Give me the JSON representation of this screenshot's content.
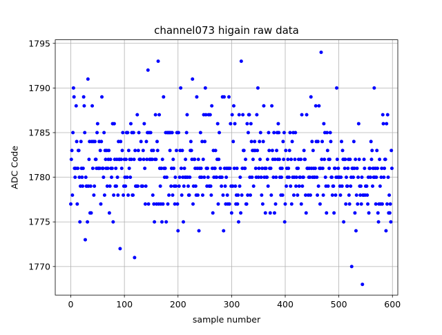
{
  "chart_data": {
    "type": "scatter",
    "title": "channel073 higain raw data",
    "xlabel": "sample number",
    "ylabel": "ADC Code",
    "xlim": [
      -29,
      610
    ],
    "ylim": [
      1766.8,
      1795.4
    ],
    "xticks": [
      0,
      100,
      200,
      300,
      400,
      500,
      600
    ],
    "yticks": [
      1770,
      1775,
      1780,
      1785,
      1790,
      1795
    ],
    "grid": true,
    "marker_color": "#0000ff",
    "series": [
      {
        "x_start": 0,
        "x_step": 1,
        "values": [
          1777,
          1782,
          1783,
          1778,
          1785,
          1790,
          1789,
          1781,
          1780,
          1781,
          1788,
          1784,
          1777,
          1781,
          1783,
          1783,
          1780,
          1775,
          1779,
          1784,
          1781,
          1780,
          1779,
          1781,
          1789,
          1788,
          1785,
          1773,
          1780,
          1779,
          1779,
          1775,
          1791,
          1779,
          1782,
          1784,
          1776,
          1779,
          1776,
          1784,
          1788,
          1781,
          1784,
          1778,
          1779,
          1784,
          1782,
          1782,
          1781,
          1785,
          1786,
          1781,
          1781,
          1784,
          1781,
          1783,
          1777,
          1784,
          1789,
          1781,
          1781,
          1780,
          1785,
          1778,
          1783,
          1782,
          1781,
          1783,
          1779,
          1781,
          1782,
          1783,
          1776,
          1779,
          1782,
          1781,
          1780,
          1781,
          1786,
          1775,
          1778,
          1786,
          1782,
          1779,
          1781,
          1779,
          1782,
          1780,
          1778,
          1784,
          1782,
          1782,
          1772,
          1784,
          1782,
          1781,
          1783,
          1785,
          1778,
          1779,
          1782,
          1780,
          1779,
          1782,
          1785,
          1780,
          1785,
          1778,
          1783,
          1781,
          1782,
          1780,
          1786,
          1782,
          1785,
          1778,
          1778,
          1785,
          1782,
          1771,
          1783,
          1779,
          1779,
          1779,
          1787,
          1779,
          1783,
          1785,
          1782,
          1782,
          1782,
          1784,
          1779,
          1779,
          1779,
          1783,
          1782,
          1786,
          1781,
          1777,
          1779,
          1784,
          1782,
          1785,
          1792,
          1777,
          1785,
          1782,
          1782,
          1785,
          1782,
          1783,
          1782,
          1778,
          1783,
          1777,
          1775,
          1782,
          1787,
          1782,
          1777,
          1784,
          1783,
          1793,
          1777,
          1787,
          1781,
          1779,
          1777,
          1781,
          1775,
          1782,
          1777,
          1789,
          1781,
          1780,
          1781,
          1785,
          1775,
          1780,
          1785,
          1777,
          1785,
          1778,
          1785,
          1783,
          1785,
          1779,
          1781,
          1785,
          1778,
          1782,
          1781,
          1779,
          1777,
          1780,
          1779,
          1783,
          1785,
          1777,
          1774,
          1785,
          1779,
          1780,
          1783,
          1790,
          1781,
          1778,
          1783,
          1780,
          1775,
          1779,
          1781,
          1780,
          1782,
          1780,
          1785,
          1787,
          1780,
          1779,
          1778,
          1778,
          1780,
          1783,
          1784,
          1783,
          1782,
          1791,
          1777,
          1779,
          1782,
          1782,
          1781,
          1779,
          1778,
          1789,
          1781,
          1778,
          1782,
          1774,
          1781,
          1780,
          1785,
          1781,
          1780,
          1784,
          1778,
          1782,
          1787,
          1780,
          1784,
          1790,
          1787,
          1781,
          1779,
          1781,
          1780,
          1787,
          1779,
          1779,
          1787,
          1779,
          1778,
          1788,
          1781,
          1776,
          1783,
          1780,
          1781,
          1781,
          1783,
          1780,
          1780,
          1782,
          1786,
          1777,
          1782,
          1785,
          1780,
          1781,
          1780,
          1779,
          1780,
          1789,
          1778,
          1774,
          1789,
          1781,
          1779,
          1777,
          1780,
          1781,
          1778,
          1777,
          1781,
          1789,
          1777,
          1781,
          1786,
          1779,
          1776,
          1787,
          1779,
          1784,
          1788,
          1781,
          1786,
          1779,
          1777,
          1778,
          1781,
          1777,
          1778,
          1775,
          1787,
          1779,
          1780,
          1776,
          1793,
          1778,
          1781,
          1787,
          1783,
          1783,
          1781,
          1781,
          1782,
          1777,
          1777,
          1786,
          1778,
          1785,
          1787,
          1787,
          1780,
          1778,
          1786,
          1784,
          1780,
          1783,
          1782,
          1779,
          1783,
          1784,
          1783,
          1781,
          1780,
          1787,
          1783,
          1790,
          1780,
          1781,
          1784,
          1782,
          1785,
          1780,
          1778,
          1781,
          1777,
          1784,
          1788,
          1780,
          1781,
          1776,
          1781,
          1780,
          1780,
          1782,
          1779,
          1785,
          1783,
          1781,
          1776,
          1781,
          1778,
          1788,
          1783,
          1782,
          1780,
          1785,
          1776,
          1782,
          1777,
          1780,
          1783,
          1785,
          1782,
          1786,
          1785,
          1782,
          1780,
          1781,
          1778,
          1780,
          1781,
          1778,
          1784,
          1782,
          1785,
          1775,
          1777,
          1783,
          1779,
          1781,
          1780,
          1782,
          1781,
          1780,
          1783,
          1785,
          1779,
          1782,
          1777,
          1784,
          1780,
          1785,
          1778,
          1780,
          1782,
          1785,
          1779,
          1780,
          1781,
          1778,
          1781,
          1782,
          1779,
          1780,
          1780,
          1782,
          1777,
          1787,
          1779,
          1780,
          1780,
          1783,
          1782,
          1782,
          1778,
          1776,
          1787,
          1781,
          1781,
          1778,
          1780,
          1781,
          1780,
          1778,
          1789,
          1781,
          1784,
          1780,
          1783,
          1781,
          1780,
          1780,
          1781,
          1788,
          1784,
          1780,
          1778,
          1784,
          1779,
          1788,
          1781,
          1777,
          1781,
          1794,
          1782,
          1784,
          1781,
          1778,
          1786,
          1782,
          1785,
          1780,
          1779,
          1776,
          1785,
          1783,
          1779,
          1782,
          1781,
          1782,
          1785,
          1784,
          1780,
          1780,
          1778,
          1779,
          1779,
          1776,
          1781,
          1781,
          1778,
          1780,
          1790,
          1782,
          1780,
          1781,
          1780,
          1780,
          1779,
          1778,
          1780,
          1784,
          1779,
          1783,
          1782,
          1775,
          1782,
          1781,
          1782,
          1777,
          1780,
          1779,
          1779,
          1781,
          1782,
          1778,
          1777,
          1782,
          1779,
          1780,
          1770,
          1781,
          1781,
          1780,
          1784,
          1781,
          1776,
          1782,
          1774,
          1778,
          1781,
          1777,
          1780,
          1786,
          1782,
          1779,
          1778,
          1779,
          1777,
          1780,
          1768,
          1778,
          1778,
          1782,
          1781,
          1778,
          1779,
          1779,
          1779,
          1778,
          1777,
          1780,
          1776,
          1781,
          1781,
          1780,
          1784,
          1782,
          1783,
          1779,
          1781,
          1780,
          1790,
          1780,
          1781,
          1777,
          1780,
          1783,
          1781,
          1776,
          1775,
          1777,
          1782,
          1779,
          1777,
          1780,
          1781,
          1777,
          1787,
          1786,
          1780,
          1781,
          1782,
          1782,
          1774,
          1786,
          1777,
          1787,
          1780,
          1776,
          1778,
          1776,
          1777,
          1775,
          1783,
          1781
        ]
      }
    ]
  }
}
